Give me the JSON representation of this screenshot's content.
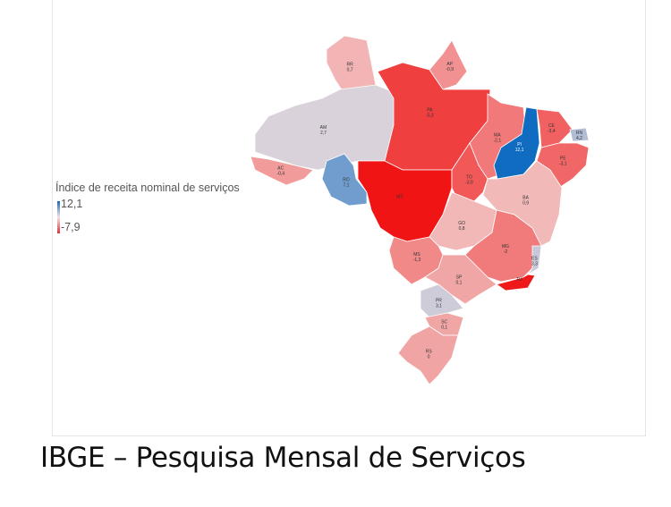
{
  "legend": {
    "title": "Índice de receita nominal de serviços",
    "max_label": "12,1",
    "min_label": "-7,9",
    "max": 12.1,
    "min": -7.9,
    "color_high": "#0f6cc0",
    "color_mid": "#f2dede",
    "color_low": "#f01414"
  },
  "title": "IBGE – Pesquisa Mensal de Serviços",
  "states": [
    {
      "code": "RR",
      "value_label": "0,7",
      "value": 0.7
    },
    {
      "code": "AP",
      "value_label": "-0,9",
      "value": -0.9
    },
    {
      "code": "AM",
      "value_label": "2,7",
      "value": 2.7
    },
    {
      "code": "PA",
      "value_label": "-5,3",
      "value": -5.3
    },
    {
      "code": "MA",
      "value_label": "-2,1",
      "value": -2.1
    },
    {
      "code": "PI",
      "value_label": "12,1",
      "value": 12.1
    },
    {
      "code": "CE",
      "value_label": "-3,4",
      "value": -3.4
    },
    {
      "code": "RN",
      "value_label": "4,2",
      "value": 4.2
    },
    {
      "code": "PE",
      "value_label": "-3,1",
      "value": -3.1
    },
    {
      "code": "AC",
      "value_label": "-0,4",
      "value": -0.4
    },
    {
      "code": "RO",
      "value_label": "7,1",
      "value": 7.1
    },
    {
      "code": "MT",
      "value_label": "",
      "value": -7.9
    },
    {
      "code": "TO",
      "value_label": "-3,9",
      "value": -3.9
    },
    {
      "code": "BA",
      "value_label": "0,9",
      "value": 0.9
    },
    {
      "code": "GO",
      "value_label": "0,8",
      "value": 0.8
    },
    {
      "code": "MG",
      "value_label": "-2",
      "value": -2
    },
    {
      "code": "ES",
      "value_label": "3,3",
      "value": 3.3
    },
    {
      "code": "RJ",
      "value_label": "",
      "value": -7.6
    },
    {
      "code": "MS",
      "value_label": "-1,3",
      "value": -1.3
    },
    {
      "code": "SP",
      "value_label": "0,1",
      "value": 0.1
    },
    {
      "code": "PR",
      "value_label": "3,1",
      "value": 3.1
    },
    {
      "code": "SC",
      "value_label": "0,1",
      "value": 0.1
    },
    {
      "code": "RS",
      "value_label": "0",
      "value": 0
    }
  ]
}
